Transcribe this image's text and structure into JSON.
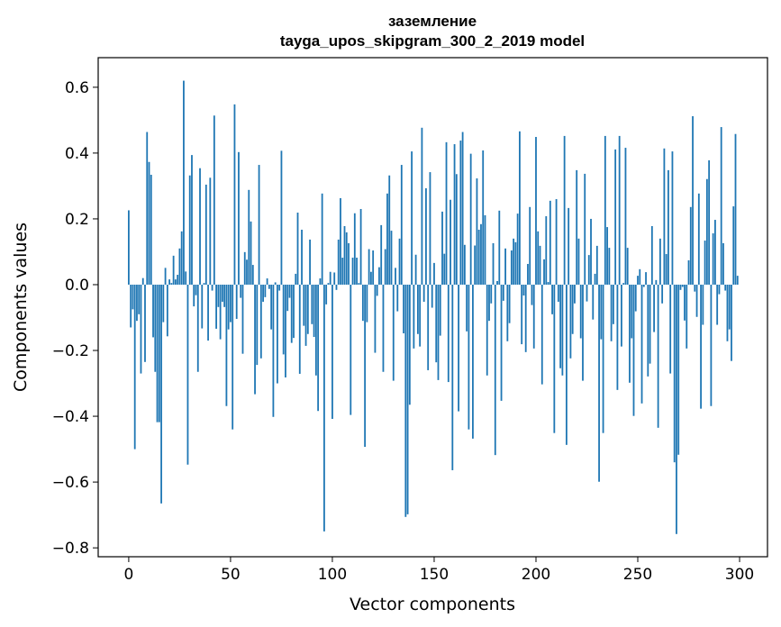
{
  "chart_data": {
    "type": "bar",
    "title": "заземление",
    "subtitle": "tayga_upos_skipgram_300_2_2019 model",
    "xlabel": "Vector components",
    "ylabel": "Components values",
    "xlim": [
      -15,
      313.7
    ],
    "ylim": [
      -0.827,
      0.69
    ],
    "xticks": [
      0,
      50,
      100,
      150,
      200,
      250,
      300
    ],
    "yticks": [
      -0.8,
      -0.6,
      -0.4,
      -0.2,
      0.0,
      0.2,
      0.4,
      0.6
    ],
    "ytick_labels": [
      "−0.8",
      "−0.6",
      "−0.4",
      "−0.2",
      "0.0",
      "0.2",
      "0.4",
      "0.6"
    ],
    "grid": false,
    "bar_color": "#1f77b4",
    "values": [
      0.226,
      -0.13,
      -0.075,
      -0.5,
      -0.11,
      -0.09,
      -0.27,
      0.02,
      -0.235,
      0.464,
      0.373,
      0.334,
      -0.16,
      -0.265,
      -0.418,
      -0.418,
      -0.665,
      -0.114,
      0.051,
      -0.157,
      0.016,
      0.005,
      0.088,
      0.016,
      0.03,
      0.11,
      0.162,
      0.62,
      0.04,
      -0.547,
      0.332,
      0.394,
      -0.066,
      -0.032,
      -0.265,
      0.354,
      -0.133,
      0.005,
      0.304,
      -0.17,
      0.325,
      -0.018,
      0.514,
      -0.134,
      -0.068,
      -0.166,
      -0.052,
      -0.068,
      -0.369,
      -0.136,
      -0.114,
      -0.44,
      0.548,
      -0.104,
      0.403,
      -0.04,
      -0.21,
      0.099,
      0.076,
      0.288,
      0.192,
      0.06,
      -0.333,
      -0.244,
      0.364,
      -0.224,
      -0.052,
      -0.038,
      0.019,
      -0.013,
      -0.136,
      -0.402,
      0.007,
      -0.3,
      -0.018,
      0.407,
      -0.212,
      -0.282,
      -0.08,
      -0.04,
      -0.177,
      -0.162,
      0.033,
      0.219,
      -0.271,
      0.167,
      -0.125,
      -0.186,
      -0.15,
      0.137,
      -0.12,
      -0.159,
      -0.276,
      -0.384,
      0.019,
      0.277,
      -0.75,
      -0.06,
      0.005,
      0.039,
      -0.408,
      0.037,
      -0.016,
      0.137,
      0.263,
      0.082,
      0.178,
      0.159,
      0.126,
      -0.396,
      0.082,
      0.217,
      0.082,
      0.005,
      0.23,
      -0.11,
      -0.493,
      -0.114,
      0.108,
      0.039,
      0.104,
      -0.207,
      -0.034,
      0.053,
      0.181,
      -0.265,
      0.108,
      0.277,
      0.332,
      0.164,
      -0.292,
      0.051,
      -0.081,
      0.14,
      0.364,
      -0.148,
      -0.706,
      -0.698,
      -0.365,
      0.405,
      -0.194,
      0.091,
      -0.15,
      -0.188,
      0.477,
      -0.052,
      0.293,
      -0.26,
      0.342,
      -0.07,
      0.066,
      -0.236,
      -0.29,
      -0.155,
      0.222,
      0.094,
      0.433,
      -0.296,
      0.258,
      -0.564,
      0.427,
      0.336,
      -0.385,
      0.438,
      0.464,
      0.121,
      -0.142,
      -0.44,
      0.398,
      -0.468,
      0.119,
      0.323,
      0.167,
      0.184,
      0.408,
      0.211,
      -0.276,
      -0.11,
      -0.057,
      0.126,
      -0.518,
      0.011,
      0.225,
      -0.353,
      -0.049,
      0.11,
      -0.172,
      -0.117,
      0.104,
      0.14,
      0.129,
      0.216,
      0.466,
      -0.181,
      -0.033,
      -0.205,
      0.063,
      0.236,
      -0.062,
      -0.194,
      0.449,
      0.162,
      0.118,
      -0.303,
      0.077,
      0.208,
      0.008,
      0.255,
      -0.09,
      -0.451,
      0.26,
      -0.052,
      -0.254,
      -0.276,
      0.452,
      -0.487,
      0.233,
      -0.224,
      -0.15,
      -0.057,
      0.348,
      0.14,
      -0.163,
      -0.292,
      0.337,
      -0.051,
      0.09,
      0.2,
      -0.106,
      0.033,
      0.118,
      -0.599,
      -0.166,
      -0.451,
      0.452,
      0.175,
      0.112,
      -0.172,
      -0.12,
      0.411,
      -0.32,
      0.452,
      -0.188,
      0.005,
      0.416,
      0.112,
      -0.298,
      -0.163,
      -0.399,
      -0.081,
      0.027,
      0.047,
      -0.361,
      -0.007,
      0.038,
      -0.279,
      -0.24,
      0.178,
      -0.144,
      0.014,
      -0.435,
      0.14,
      -0.057,
      0.414,
      0.093,
      0.348,
      -0.27,
      0.405,
      -0.54,
      -0.758,
      -0.517,
      -0.016,
      -0.007,
      -0.109,
      -0.194,
      0.074,
      0.236,
      0.512,
      -0.021,
      -0.098,
      0.277,
      -0.377,
      -0.122,
      0.134,
      0.321,
      0.378,
      -0.369,
      0.156,
      0.197,
      -0.122,
      -0.029,
      0.479,
      0.126,
      -0.018,
      -0.172,
      -0.136,
      -0.232,
      0.238,
      0.458,
      0.027
    ]
  }
}
